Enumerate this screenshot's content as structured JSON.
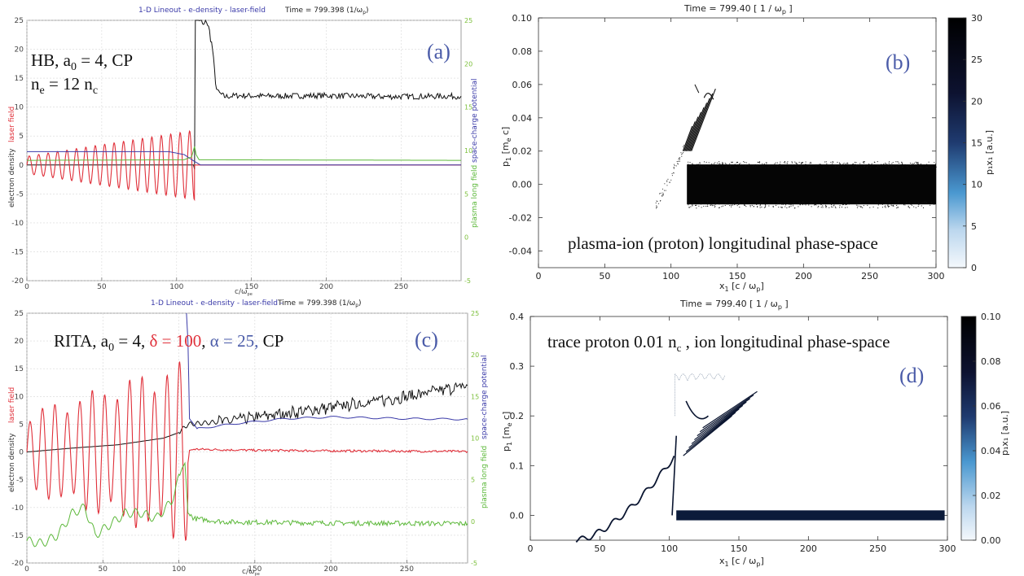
{
  "figure": {
    "panels": {
      "a": {
        "label": "(a)",
        "header": "1-D Lineout - e-density - laser-field",
        "time": "Time = 799.398 (1/ω",
        "time_sub": "p",
        "time_close": ")",
        "ann_line1": "HB, a",
        "ann_line1_sub": "0",
        "ann_line1_rest": " = 4, CP",
        "ann_line2": "n",
        "ann_line2_sub1": "e",
        "ann_line2_mid": " = 12 n",
        "ann_line2_sub2": "c",
        "ylabel_laser": "laser field",
        "ylabel_density": "electron density",
        "ylabel_right1": "space-charge potential",
        "ylabel_right2": "plasma long field",
        "xlabel": "c/ω",
        "xlabel_sub": "pe"
      },
      "b": {
        "label": "(b)",
        "time": "Time =  799.40 [ 1 / ω",
        "time_sub": "p",
        "time_close": " ]",
        "ylabel": "p",
        "ylabel_sub": "1",
        "ylabel_rest": " [m",
        "ylabel_sub2": "e",
        "ylabel_close": " c]",
        "xlabel": "x",
        "xlabel_sub": "1",
        "xlabel_rest": " [c / ω",
        "xlabel_sub2": "p",
        "xlabel_close": "]",
        "colorbar_label": "p₁x₁ [a.u.]",
        "annotation": "plasma-ion (proton) longitudinal phase-space"
      },
      "c": {
        "label": "(c)",
        "header": "1-D Lineout - e-density - laser-field -",
        "time": "Time = 799.398 (1/ω",
        "time_sub": "p",
        "time_close": ")",
        "ann_a": "RITA, a",
        "ann_a_sub": "0",
        "ann_b": " = 4, ",
        "ann_delta": "δ = 100",
        "ann_comma": ", ",
        "ann_alpha": "α = 25,",
        "ann_cp": " CP",
        "ylabel_laser": "laser field",
        "ylabel_density": "electron density",
        "ylabel_right1": "space-charge potential",
        "ylabel_right2": "plasma long field",
        "xlabel": "c/ω",
        "xlabel_sub": "pe"
      },
      "d": {
        "label": "(d)",
        "time": "Time =  799.40 [ 1 / ω",
        "time_sub": "p",
        "time_close": " ]",
        "ylabel": "p",
        "ylabel_sub": "1",
        "ylabel_rest": " [m",
        "ylabel_sub2": "e",
        "ylabel_close": " c]",
        "xlabel": "x",
        "xlabel_sub": "1",
        "xlabel_rest": " [c / ω",
        "xlabel_sub2": "p",
        "xlabel_close": "]",
        "colorbar_label": "p₁x₁ [a.u.]",
        "annotation": "trace proton 0.01 n",
        "annotation_sub": "c",
        "annotation_rest": " , ion longitudinal phase-space"
      }
    },
    "colors": {
      "laser": "#e0303a",
      "density": "#111111",
      "potential": "#3a3aa8",
      "longfield": "#5cb83a",
      "panel_label": "#4a5ba8"
    }
  },
  "chart_data": [
    {
      "id": "a",
      "type": "line",
      "xlim": [
        0,
        290
      ],
      "ylim": [
        -20,
        25
      ],
      "ylim_right": [
        -5,
        25
      ],
      "x_ticks": [
        0,
        50,
        100,
        150,
        200,
        250
      ],
      "y_ticks": [
        -20,
        -15,
        -10,
        -5,
        0,
        5,
        10,
        15,
        20,
        25
      ],
      "y_ticks_right": [
        -5,
        0,
        5,
        10,
        15,
        20,
        25
      ],
      "series": [
        {
          "role": "electron density",
          "color": "#111111",
          "points": [
            [
              0,
              0
            ],
            [
              112,
              0
            ],
            [
              112.5,
              26
            ],
            [
              116,
              25
            ],
            [
              118,
              24
            ],
            [
              120,
              25
            ],
            [
              122,
              23
            ],
            [
              124,
              20
            ],
            [
              126,
              14
            ],
            [
              128,
              12.5
            ],
            [
              132,
              11.8
            ],
            [
              140,
              12
            ],
            [
              160,
              11.9
            ],
            [
              200,
              12
            ],
            [
              240,
              11.8
            ],
            [
              290,
              11.9
            ]
          ]
        },
        {
          "role": "laser field",
          "color": "#e0303a",
          "oscillation": {
            "x_start": 0,
            "x_end": 112,
            "period": 6.3,
            "amp_start": 1.5,
            "amp_end": 6
          },
          "points": [
            [
              112,
              0
            ],
            [
              290,
              0
            ]
          ]
        },
        {
          "role": "space-charge potential",
          "color": "#3a3aa8",
          "points": [
            [
              0,
              2.3
            ],
            [
              95,
              2.3
            ],
            [
              105,
              1.8
            ],
            [
              112,
              0.6
            ],
            [
              116,
              0
            ],
            [
              290,
              0
            ]
          ]
        },
        {
          "role": "plasma long field",
          "color": "#5cb83a",
          "points": [
            [
              0,
              0.8
            ],
            [
              105,
              0.9
            ],
            [
              110,
              1.4
            ],
            [
              112,
              3.2
            ],
            [
              113,
              1.8
            ],
            [
              115,
              0.9
            ],
            [
              290,
              0.8
            ]
          ]
        }
      ]
    },
    {
      "id": "b",
      "type": "scatter",
      "xlim": [
        0,
        300
      ],
      "ylim": [
        -0.05,
        0.1
      ],
      "x_ticks": [
        0,
        50,
        100,
        150,
        200,
        250,
        300
      ],
      "y_ticks": [
        -0.04,
        -0.02,
        0.0,
        0.02,
        0.04,
        0.06,
        0.08,
        0.1
      ],
      "colorbar_ticks": [
        0,
        5,
        10,
        15,
        20,
        25,
        30
      ],
      "regions": [
        {
          "description": "bulk band",
          "x": [
            112,
            300
          ],
          "y": [
            -0.012,
            0.012
          ]
        },
        {
          "description": "reflected spikes",
          "x": [
            108,
            132
          ],
          "y": [
            0.015,
            0.062
          ]
        },
        {
          "description": "precursor",
          "x": [
            85,
            112
          ],
          "y": [
            -0.015,
            0.03
          ]
        }
      ]
    },
    {
      "id": "c",
      "type": "line",
      "xlim": [
        0,
        290
      ],
      "ylim": [
        -20,
        25
      ],
      "ylim_right": [
        -5,
        25
      ],
      "x_ticks": [
        0,
        50,
        100,
        150,
        200,
        250
      ],
      "y_ticks": [
        -20,
        -15,
        -10,
        -5,
        0,
        5,
        10,
        15,
        20,
        25
      ],
      "y_ticks_right": [
        -5,
        0,
        5,
        10,
        15,
        20,
        25
      ],
      "series": [
        {
          "role": "electron density",
          "color": "#111111",
          "points": [
            [
              0,
              0
            ],
            [
              30,
              0.7
            ],
            [
              60,
              1.3
            ],
            [
              90,
              2.5
            ],
            [
              100,
              3.5
            ],
            [
              106,
              5
            ],
            [
              130,
              5.5
            ],
            [
              160,
              6.6
            ],
            [
              200,
              8
            ],
            [
              250,
              10
            ],
            [
              290,
              12
            ]
          ]
        },
        {
          "role": "laser field",
          "color": "#e0303a",
          "oscillation": {
            "x_start": 0,
            "x_end": 106,
            "period": 8.2,
            "amp_start": 6,
            "amp_end": 14
          },
          "points": [
            [
              106,
              -2
            ],
            [
              107,
              0.3
            ],
            [
              110,
              0.5
            ],
            [
              150,
              0.3
            ],
            [
              200,
              0.2
            ],
            [
              290,
              0.1
            ]
          ]
        },
        {
          "role": "space-charge potential",
          "color": "#3a3aa8",
          "points": [
            [
              105,
              25
            ],
            [
              106,
              20
            ],
            [
              107,
              6
            ],
            [
              112,
              4.2
            ],
            [
              140,
              5.2
            ],
            [
              170,
              6
            ],
            [
              200,
              6.3
            ],
            [
              250,
              6
            ],
            [
              290,
              5.9
            ]
          ]
        },
        {
          "role": "plasma long field",
          "color": "#5cb83a",
          "points": [
            [
              0,
              -16
            ],
            [
              10,
              -16.5
            ],
            [
              20,
              -15
            ],
            [
              30,
              -11
            ],
            [
              38,
              -10
            ],
            [
              45,
              -15
            ],
            [
              55,
              -13
            ],
            [
              65,
              -11
            ],
            [
              75,
              -11
            ],
            [
              85,
              -12
            ],
            [
              95,
              -9
            ],
            [
              102,
              -3
            ],
            [
              104,
              -2
            ],
            [
              106,
              -11
            ],
            [
              110,
              -12
            ],
            [
              130,
              -12.6
            ],
            [
              200,
              -12.8
            ],
            [
              290,
              -12.9
            ]
          ]
        }
      ]
    },
    {
      "id": "d",
      "type": "scatter",
      "xlim": [
        0,
        300
      ],
      "ylim": [
        -0.05,
        0.4
      ],
      "x_ticks": [
        0,
        50,
        100,
        150,
        200,
        250,
        300
      ],
      "y_ticks": [
        0.0,
        0.1,
        0.2,
        0.3,
        0.4
      ],
      "colorbar_ticks": [
        0.0,
        0.02,
        0.04,
        0.06,
        0.08,
        0.1
      ],
      "regions": [
        {
          "description": "bulk band",
          "x": [
            105,
            298
          ],
          "y": [
            -0.01,
            0.01
          ]
        },
        {
          "description": "acceleration ramp",
          "x": [
            35,
            105
          ],
          "y": [
            -0.05,
            0.2
          ]
        },
        {
          "description": "reflected filaments",
          "x": [
            105,
            165
          ],
          "y": [
            0.11,
            0.29
          ]
        }
      ]
    }
  ]
}
